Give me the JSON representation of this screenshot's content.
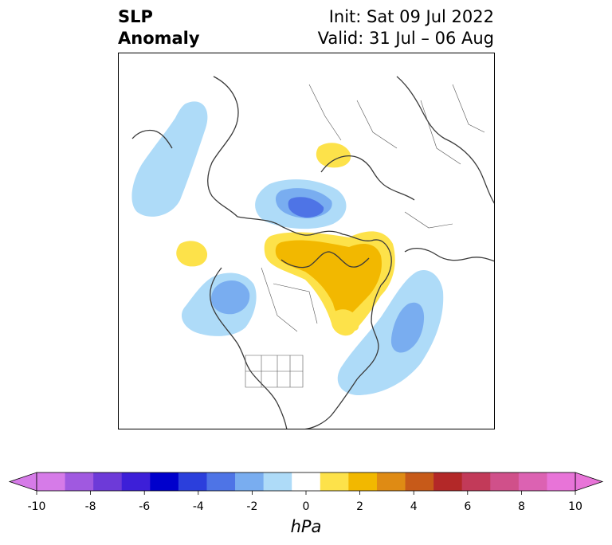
{
  "title": {
    "left_line1": "SLP",
    "left_line2": "Anomaly",
    "right_line1": "Init: Sat 09 Jul 2022",
    "right_line2": "Valid: 31 Jul – 06 Aug"
  },
  "colorbar": {
    "unit_label": "hPa",
    "ticks": [
      "-10",
      "-8",
      "-6",
      "-4",
      "-2",
      "0",
      "2",
      "4",
      "6",
      "8",
      "10"
    ],
    "colors": [
      "#d67be8",
      "#a059e0",
      "#6d3ad8",
      "#3d1fd8",
      "#0000cc",
      "#2b3fdc",
      "#4e74e6",
      "#79adf0",
      "#aedbf8",
      "#ffffff",
      "#fde24a",
      "#f2b800",
      "#df8b14",
      "#c75a19",
      "#b32828",
      "#c23a59",
      "#d0508a",
      "#dc62b2",
      "#e874d8"
    ],
    "under_color": "#d67be8",
    "over_color": "#e874d8"
  },
  "map": {
    "projection": "north-polar-stereographic",
    "region": "Northern Hemisphere",
    "anomaly_colors": {
      "neg_light": "#aedbf8",
      "neg_mid": "#79adf0",
      "neg_dark": "#4e74e6",
      "pos_light": "#fde24a",
      "pos_mid": "#f2b800"
    }
  }
}
